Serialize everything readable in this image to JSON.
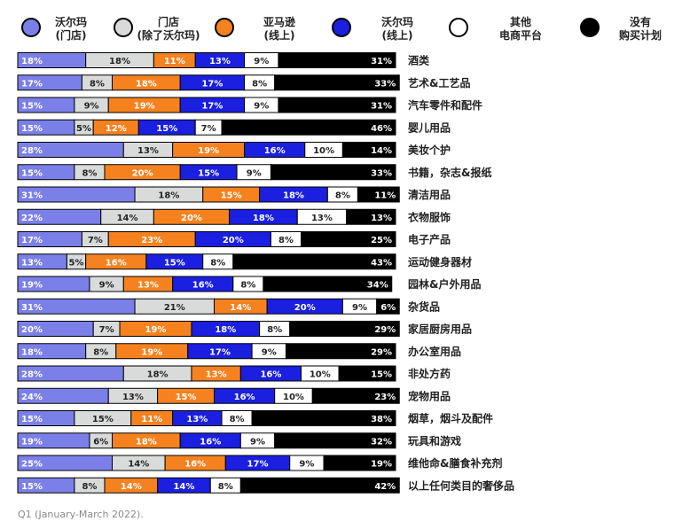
{
  "chart_data": {
    "type": "stacked-bar",
    "categories": [
      "酒类",
      "艺术&工艺品",
      "汽车零件和配件",
      "婴儿用品",
      "美妆个护",
      "书籍，杂志&报纸",
      "清洁用品",
      "衣物服饰",
      "电子产品",
      "运动健身器材",
      "园林&户外用品",
      "杂货品",
      "家居厨房用品",
      "办公室用品",
      "非处方药",
      "宠物用品",
      "烟草，烟斗及配件",
      "玩具和游戏",
      "维他命&膳食补充剂",
      "以上任何类目的奢侈品"
    ],
    "series": [
      {
        "name": "沃尔玛\n(门店)",
        "color": "#7b80e9",
        "values": [
          18,
          17,
          15,
          15,
          28,
          15,
          31,
          22,
          17,
          13,
          19,
          31,
          20,
          18,
          28,
          24,
          15,
          19,
          25,
          15
        ],
        "value_labels": [
          "18%",
          "17%",
          "15%",
          "15%",
          "28%",
          "15%",
          "31%",
          "22%",
          "17%",
          "13%",
          "19%",
          "31%",
          "20%",
          "18%",
          "28%",
          "24%",
          "15%",
          "19%",
          "25%",
          "15%"
        ]
      },
      {
        "name": "门店\n(除了沃尔玛)",
        "color": "#d9dbdb",
        "values": [
          18,
          8,
          9,
          5,
          13,
          8,
          18,
          14,
          7,
          5,
          9,
          21,
          7,
          8,
          18,
          13,
          15,
          6,
          14,
          8
        ],
        "value_labels": [
          "18%",
          "8%",
          "9%",
          "5%",
          "13%",
          "8%",
          "18%",
          "14%",
          "7%",
          "5%",
          "9%",
          "21%",
          "7%",
          "8%",
          "18%",
          "13%",
          "15%",
          "6%",
          "14%",
          "8%"
        ]
      },
      {
        "name": "亚马逊\n(线上)",
        "color": "#f5821f",
        "values": [
          11,
          18,
          19,
          12,
          19,
          20,
          15,
          20,
          23,
          16,
          13,
          14,
          19,
          19,
          13,
          15,
          11,
          18,
          16,
          14
        ],
        "value_labels": [
          "11%",
          "18%",
          "19%",
          "12%",
          "19%",
          "20%",
          "15%",
          "20%",
          "23%",
          "16%",
          "13%",
          "14%",
          "19%",
          "19%",
          "13%",
          "15%",
          "11%",
          "18%",
          "16%",
          "14%"
        ]
      },
      {
        "name": "沃尔玛\n(线上)",
        "color": "#1a1fe0",
        "values": [
          13,
          17,
          17,
          15,
          16,
          15,
          18,
          18,
          20,
          15,
          16,
          20,
          18,
          17,
          16,
          16,
          13,
          16,
          17,
          14
        ],
        "value_labels": [
          "13%",
          "17%",
          "17%",
          "15%",
          "16%",
          "15%",
          "18%",
          "18%",
          "20%",
          "15%",
          "16%",
          "20%",
          "18%",
          "17%",
          "16%",
          "16%",
          "13%",
          "16%",
          "17%",
          "14%"
        ]
      },
      {
        "name": "其他\n电商平台",
        "color": "#ffffff",
        "values": [
          9,
          8,
          9,
          7,
          10,
          9,
          8,
          13,
          8,
          8,
          8,
          9,
          8,
          9,
          10,
          10,
          8,
          9,
          9,
          8
        ],
        "value_labels": [
          "9%",
          "8%",
          "9%",
          "7%",
          "10%",
          "9%",
          "8%",
          "13%",
          "8%",
          "8%",
          "8%",
          "9%",
          "8%",
          "9%",
          "10%",
          "10%",
          "8%",
          "9%",
          "9%",
          "8%"
        ]
      },
      {
        "name": "没有\n购买计划",
        "color": "#000000",
        "values": [
          31,
          33,
          31,
          46,
          14,
          33,
          11,
          13,
          25,
          43,
          34,
          6,
          29,
          29,
          15,
          23,
          38,
          32,
          19,
          42
        ],
        "value_labels": [
          "31%",
          "33%",
          "31%",
          "46%",
          "14%",
          "33%",
          "11%",
          "13%",
          "25%",
          "43%",
          "34%",
          "6%",
          "29%",
          "29%",
          "15%",
          "23%",
          "38%",
          "32%",
          "19%",
          "42%"
        ]
      }
    ],
    "footnote": "Q1 (January-March 2022)."
  }
}
